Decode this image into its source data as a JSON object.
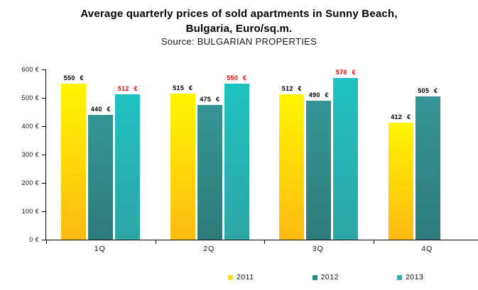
{
  "header": {
    "title_lines": [
      "Average quarterly prices of sold apartments in Sunny Beach,",
      "Bulgaria, Euro/sq.m."
    ],
    "subtitle": "Source: BULGARIAN PROPERTIES"
  },
  "chart_data": {
    "type": "bar",
    "title": "Average quarterly prices of sold apartments in Sunny Beach, Bulgaria, Euro/sq.m.",
    "subtitle": "Source: BULGARIAN PROPERTIES",
    "categories": [
      "1Q",
      "2Q",
      "3Q",
      "4Q"
    ],
    "series": [
      {
        "name": "2011",
        "values": [
          550,
          515,
          512,
          412
        ],
        "color_top": "#FFF500",
        "color_bottom": "#FDBA12",
        "legend_color": "#FFE104",
        "label_color": "#000000"
      },
      {
        "name": "2012",
        "values": [
          440,
          475,
          490,
          505
        ],
        "color_top": "#379595",
        "color_bottom": "#2D7B7B",
        "legend_color": "#2F8787",
        "label_color": "#000000"
      },
      {
        "name": "2013",
        "values": [
          512,
          550,
          570,
          null
        ],
        "color_top": "#1FC1C1",
        "color_bottom": "#2EA6A6",
        "legend_color": "#2AB0B0",
        "label_color": "#FF0000"
      }
    ],
    "value_suffix": " €",
    "ylim": [
      0,
      600
    ],
    "ytick_step": 100,
    "ytick_labels": [
      "0 €",
      "100 €",
      "200 €",
      "300 €",
      "400 €",
      "500 €",
      "600 €"
    ],
    "xlabel": "",
    "ylabel": "",
    "grid": false,
    "legend_position": "bottom"
  }
}
